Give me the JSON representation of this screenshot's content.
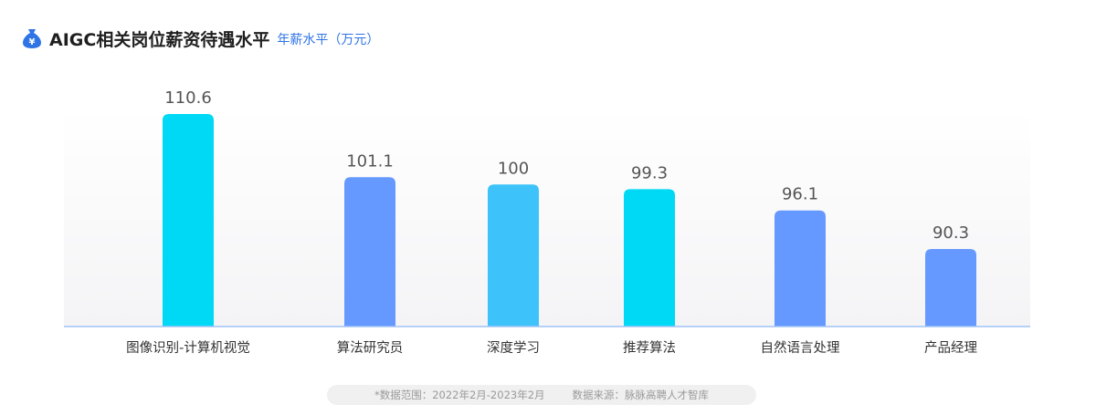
{
  "header": {
    "title": "AIGC相关岗位薪资待遇水平",
    "subtitle": "年薪水平（万元）",
    "icon": "money-bag-icon"
  },
  "chart_data": {
    "type": "bar",
    "categories": [
      "图像识别-计算机视觉",
      "算法研究员",
      "深度学习",
      "推荐算法",
      "自然语言处理",
      "产品经理"
    ],
    "values": [
      110.6,
      101.1,
      100,
      99.3,
      96.1,
      90.3
    ],
    "value_labels": [
      "110.6",
      "101.1",
      "100",
      "99.3",
      "96.1",
      "90.3"
    ],
    "bar_colors": [
      "#00D9F5",
      "#6699FF",
      "#3DC3FA",
      "#00D9F5",
      "#6699FF",
      "#6699FF"
    ],
    "title": "AIGC相关岗位薪资待遇水平",
    "ylabel": "年薪水平（万元）",
    "xlabel": "",
    "grid": false,
    "legend": "none"
  },
  "footer": {
    "range": "*数据范围：2022年2月-2023年2月",
    "source": "数据来源：脉脉高聘人才智库"
  },
  "colors": {
    "axis": "#9EC3F5",
    "title": "#1F1F1F",
    "subtitle": "#2F74E6",
    "icon": "#2F74E6"
  }
}
